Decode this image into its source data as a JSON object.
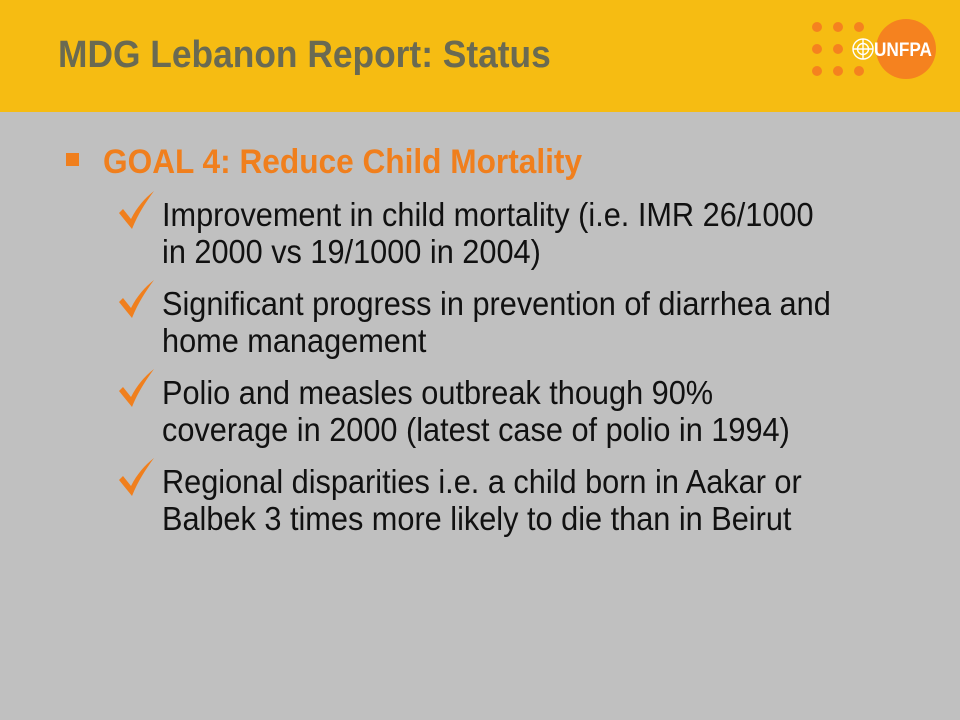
{
  "slide": {
    "title": "MDG Lebanon Report: Status",
    "logo_text": "UNFPA",
    "goal": "GOAL 4: Reduce Child Mortality",
    "items": [
      {
        "line1": "Improvement in child mortality (i.e. IMR 26/1000",
        "line2": "in 2000 vs 19/1000 in 2004)"
      },
      {
        "line1": "Significant progress in prevention of diarrhea and",
        "line2": "home management"
      },
      {
        "line1": "Polio and measles outbreak though 90%",
        "line2": "coverage in 2000 (latest case of polio in 1994)"
      },
      {
        "line1": "Regional disparities i.e. a child born in Aakar or",
        "line2": "Balbek 3 times more likely to die than in Beirut"
      }
    ]
  },
  "colors": {
    "header": "#f6bc12",
    "background": "#c0c0c0",
    "title": "#6a6a52",
    "accent": "#f07f1d"
  },
  "icons": [
    "square-bullet-icon",
    "checkmark-icon",
    "unfpa-logo"
  ]
}
